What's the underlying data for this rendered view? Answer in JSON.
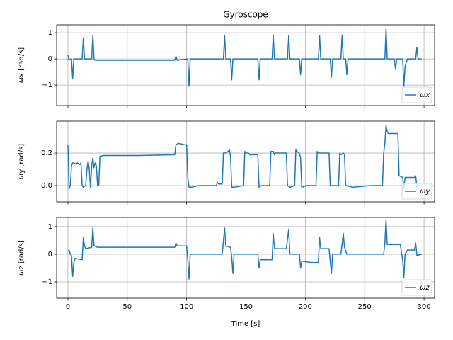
{
  "chart_data": [
    {
      "type": "line",
      "title": "Gyroscope",
      "ylabel": "ωx [rad/s]",
      "x": [
        0,
        1,
        2,
        3,
        4,
        5,
        12,
        13,
        14,
        20,
        21,
        22,
        23,
        90,
        91,
        92,
        101,
        102,
        103,
        131,
        132,
        133,
        137,
        138,
        139,
        160,
        161,
        162,
        172,
        173,
        174,
        185,
        186,
        187,
        195,
        196,
        197,
        211,
        212,
        213,
        221,
        222,
        223,
        230,
        231,
        232,
        234,
        235,
        236,
        267,
        268,
        269,
        275,
        276,
        277,
        282,
        283,
        284,
        286,
        293,
        294,
        295,
        298
      ],
      "series": [
        {
          "name": "ωx",
          "color": "#1f77b4",
          "values": [
            0.15,
            -0.05,
            0,
            0,
            -0.75,
            0,
            0,
            0.8,
            0,
            0,
            0.9,
            0,
            -0.05,
            -0.05,
            0.1,
            -0.05,
            0,
            -1.05,
            0,
            0,
            0.9,
            0,
            0,
            -0.8,
            0,
            0,
            -0.8,
            0,
            0,
            0.9,
            0,
            0,
            0.9,
            0,
            0,
            -0.6,
            0,
            0,
            0.9,
            0,
            0,
            -0.7,
            0,
            0,
            0.9,
            0,
            0,
            -0.6,
            0,
            0,
            1.15,
            0,
            0,
            -0.4,
            0,
            0,
            -1.05,
            -0.3,
            0,
            0,
            0.45,
            0,
            0
          ]
        }
      ],
      "xlim": [
        -9.5,
        308.9
      ],
      "xticks": [
        0,
        50,
        100,
        150,
        200,
        250,
        300
      ],
      "ylim": [
        -1.78,
        1.3
      ],
      "yticks": [
        {
          "value": -1,
          "label": "−1"
        },
        0,
        1
      ],
      "grid": true,
      "legend": "lower right"
    },
    {
      "type": "line",
      "ylabel": "ωy [rad/s]",
      "x": [
        0,
        1,
        2,
        3,
        4,
        5,
        7,
        8,
        10,
        11,
        12,
        13,
        15,
        16,
        17,
        18,
        19,
        20,
        21,
        22,
        23,
        24,
        25,
        26,
        27,
        30,
        60,
        90,
        91,
        93,
        99,
        100,
        101,
        102,
        104,
        110,
        125,
        126,
        127,
        130,
        131,
        133,
        135,
        136,
        137,
        138,
        140,
        148,
        149,
        150,
        152,
        153,
        160,
        161,
        163,
        170,
        171,
        173,
        174,
        175,
        184,
        185,
        187,
        191,
        192,
        193,
        195,
        196,
        197,
        201,
        209,
        210,
        211,
        220,
        221,
        228,
        229,
        230,
        232,
        233,
        234,
        240,
        255,
        265,
        266,
        267,
        268,
        269,
        270,
        278,
        279,
        282,
        283,
        284,
        292,
        293,
        294,
        295,
        298
      ],
      "series": [
        {
          "name": "ωy",
          "color": "#1f77b4",
          "values": [
            0.25,
            -0.02,
            0,
            0.12,
            0.14,
            0.14,
            0.13,
            0.14,
            0.13,
            0.14,
            0,
            -0.01,
            0,
            0.1,
            0.15,
            0.1,
            -0.01,
            0.12,
            0.17,
            0.11,
            0.14,
            0.12,
            0,
            0,
            0.18,
            0.185,
            0.185,
            0.19,
            0.25,
            0.26,
            0.25,
            0.25,
            0.05,
            -0.01,
            -0.01,
            0,
            0,
            0.02,
            0.01,
            0.01,
            0.2,
            0.2,
            0.21,
            0.22,
            0.18,
            -0.01,
            -0.01,
            0,
            0.21,
            0.2,
            0.2,
            0.19,
            0.19,
            -0.01,
            0,
            0,
            0.21,
            0.21,
            0.19,
            0.2,
            0.2,
            0,
            -0.01,
            0,
            0.22,
            0.21,
            0.2,
            0.17,
            -0.01,
            0,
            0,
            0.21,
            0.2,
            0.2,
            0,
            0,
            0.2,
            0.19,
            0.2,
            0.19,
            0,
            -0.01,
            0,
            0,
            0.2,
            0.26,
            0.37,
            0.33,
            0.32,
            0.32,
            0.06,
            0.05,
            -0.02,
            0.05,
            0.05,
            0.06,
            -0.01,
            0,
            0
          ]
        }
      ],
      "xlim": [
        -9.5,
        308.9
      ],
      "xticks": [
        0,
        50,
        100,
        150,
        200,
        250,
        300
      ],
      "ylim": [
        -0.1,
        0.396
      ],
      "yticks": [
        {
          "value": 0,
          "label": "0.0"
        },
        0.2
      ],
      "grid": true,
      "legend": "lower right"
    },
    {
      "type": "line",
      "ylabel": "ωz [rad/s]",
      "xlabel": "Time [s]",
      "x": [
        0,
        1,
        2,
        3,
        4,
        5,
        6,
        12,
        13,
        14,
        15,
        20,
        21,
        22,
        25,
        90,
        91,
        92,
        100,
        101,
        102,
        103,
        130,
        132,
        133,
        137,
        138,
        139,
        140,
        160,
        161,
        162,
        165,
        172,
        173,
        174,
        184,
        186,
        187,
        195,
        196,
        197,
        205,
        211,
        212,
        213,
        220,
        222,
        223,
        230,
        232,
        233,
        235,
        266,
        267,
        268,
        269,
        280,
        282,
        283,
        284,
        286,
        292,
        293,
        294,
        298
      ],
      "series": [
        {
          "name": "ωz",
          "color": "#1f77b4",
          "values": [
            0.1,
            0.15,
            0,
            -0.05,
            -0.8,
            -0.3,
            -0.15,
            -0.2,
            0.6,
            0.3,
            0.2,
            0.25,
            0.95,
            0.3,
            0.25,
            0.25,
            0.4,
            0.3,
            0.3,
            -0.2,
            -0.9,
            0,
            0,
            0.95,
            0.3,
            0.25,
            -0.1,
            -0.7,
            0,
            0,
            -0.5,
            -0.2,
            -0.2,
            -0.2,
            0.75,
            0.2,
            0.2,
            0.9,
            0,
            0,
            -0.5,
            -0.25,
            -0.3,
            -0.3,
            0.6,
            0.2,
            0.2,
            -0.7,
            0,
            0,
            0.75,
            0.25,
            0,
            0,
            0.4,
            1.25,
            0.35,
            0.35,
            -0.2,
            -0.85,
            0,
            0.15,
            0.15,
            0.4,
            -0.05,
            0
          ]
        }
      ],
      "xlim": [
        -9.5,
        308.9
      ],
      "xticks": [
        0,
        50,
        100,
        150,
        200,
        250,
        300
      ],
      "ylim": [
        -1.59,
        1.33
      ],
      "yticks": [
        {
          "value": -1,
          "label": "−1"
        },
        0,
        1
      ],
      "grid": true,
      "legend": "lower right"
    }
  ]
}
